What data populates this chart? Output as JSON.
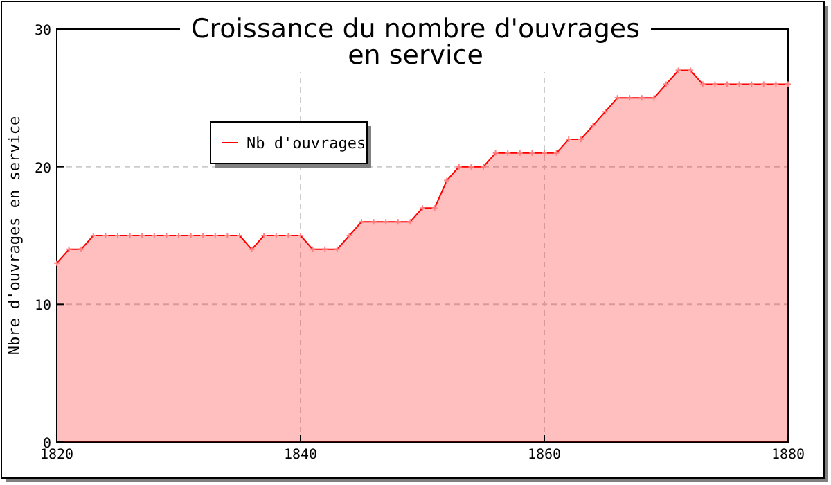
{
  "chart_data": {
    "type": "area",
    "title": "Croissance du nombre d'ouvrages\nen service",
    "ylabel": "Nbre d'ouvrages en service",
    "x": [
      1820,
      1821,
      1822,
      1823,
      1824,
      1825,
      1826,
      1827,
      1828,
      1829,
      1830,
      1831,
      1832,
      1833,
      1834,
      1835,
      1836,
      1837,
      1838,
      1839,
      1840,
      1841,
      1842,
      1843,
      1844,
      1845,
      1846,
      1847,
      1848,
      1849,
      1850,
      1851,
      1852,
      1853,
      1854,
      1855,
      1856,
      1857,
      1858,
      1859,
      1860,
      1861,
      1862,
      1863,
      1864,
      1865,
      1866,
      1867,
      1868,
      1869,
      1870,
      1871,
      1872,
      1873,
      1874,
      1875,
      1876,
      1877,
      1878,
      1879,
      1880
    ],
    "series": [
      {
        "name": "Nb d'ouvrages",
        "color": "#ff0000",
        "values": [
          13,
          14,
          14,
          15,
          15,
          15,
          15,
          15,
          15,
          15,
          15,
          15,
          15,
          15,
          15,
          15,
          14,
          15,
          15,
          15,
          15,
          14,
          14,
          14,
          15,
          16,
          16,
          16,
          16,
          16,
          17,
          17,
          19,
          20,
          20,
          20,
          21,
          21,
          21,
          21,
          21,
          21,
          22,
          22,
          23,
          24,
          25,
          25,
          25,
          25,
          26,
          27,
          27,
          26,
          26,
          26,
          26,
          26,
          26,
          26,
          26
        ]
      }
    ],
    "xlim": [
      1820,
      1880
    ],
    "xticks": [
      1820,
      1840,
      1860,
      1880
    ],
    "ylim": [
      0,
      30
    ],
    "yticks": [
      0,
      10,
      20,
      30
    ],
    "grid": true,
    "legend": "top left",
    "marker": "cross",
    "line_style": "solid"
  }
}
